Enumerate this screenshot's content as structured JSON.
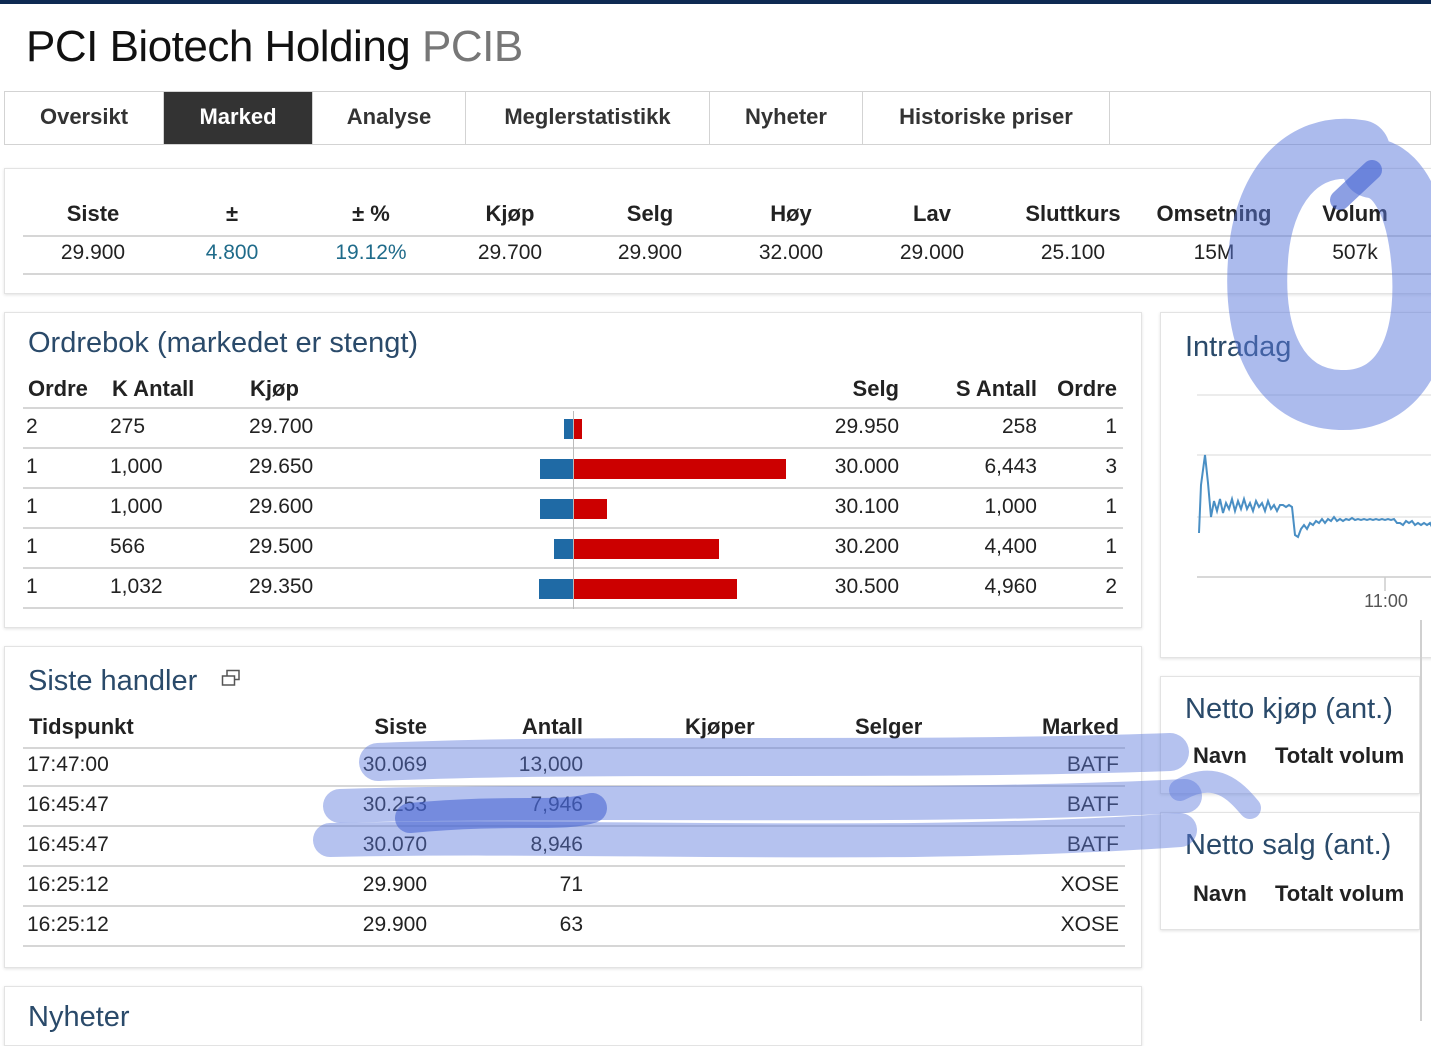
{
  "page": {
    "company": "PCI Biotech Holding",
    "ticker": "PCIB"
  },
  "tabs": [
    "Oversikt",
    "Marked",
    "Analyse",
    "Meglerstatistikk",
    "Nyheter",
    "Historiske priser"
  ],
  "active_tab": "Marked",
  "quote": {
    "headers": [
      "Siste",
      "±",
      "± %",
      "Kjøp",
      "Selg",
      "Høy",
      "Lav",
      "Sluttkurs",
      "Omsetning",
      "Volum"
    ],
    "values": [
      "29.900",
      "4.800",
      "19.12%",
      "29.700",
      "29.900",
      "32.000",
      "29.000",
      "25.100",
      "15M",
      "507k"
    ]
  },
  "orderbook": {
    "title": "Ordrebok (markedet er stengt)",
    "headers": {
      "buy_orders": "Ordre",
      "buy_qty": "K Antall",
      "buy_price": "Kjøp",
      "sell_price": "Selg",
      "sell_qty": "S Antall",
      "sell_orders": "Ordre"
    },
    "rows": [
      {
        "buy_orders": "2",
        "buy_qty": "275",
        "buy_price": "29.700",
        "sell_price": "29.950",
        "sell_qty": "258",
        "sell_orders": "1",
        "buy_qty_num": 275,
        "sell_qty_num": 258
      },
      {
        "buy_orders": "1",
        "buy_qty": "1,000",
        "buy_price": "29.650",
        "sell_price": "30.000",
        "sell_qty": "6,443",
        "sell_orders": "3",
        "buy_qty_num": 1000,
        "sell_qty_num": 6443
      },
      {
        "buy_orders": "1",
        "buy_qty": "1,000",
        "buy_price": "29.600",
        "sell_price": "30.100",
        "sell_qty": "1,000",
        "sell_orders": "1",
        "buy_qty_num": 1000,
        "sell_qty_num": 1000
      },
      {
        "buy_orders": "1",
        "buy_qty": "566",
        "buy_price": "29.500",
        "sell_price": "30.200",
        "sell_qty": "4,400",
        "sell_orders": "1",
        "buy_qty_num": 566,
        "sell_qty_num": 4400
      },
      {
        "buy_orders": "1",
        "buy_qty": "1,032",
        "buy_price": "29.350",
        "sell_price": "30.500",
        "sell_qty": "4,960",
        "sell_orders": "2",
        "buy_qty_num": 1032,
        "sell_qty_num": 4960
      }
    ]
  },
  "intraday": {
    "title": "Intradag",
    "time_label": "11:00"
  },
  "trades": {
    "title": "Siste handler",
    "popout_icon": "popout-icon",
    "headers": {
      "time": "Tidspunkt",
      "last": "Siste",
      "qty": "Antall",
      "buyer": "Kjøper",
      "seller": "Selger",
      "market": "Marked"
    },
    "rows": [
      {
        "time": "17:47:00",
        "last": "30.069",
        "qty": "13,000",
        "buyer": "",
        "seller": "",
        "market": "BATF"
      },
      {
        "time": "16:45:47",
        "last": "30.253",
        "qty": "7,946",
        "buyer": "",
        "seller": "",
        "market": "BATF"
      },
      {
        "time": "16:45:47",
        "last": "30.070",
        "qty": "8,946",
        "buyer": "",
        "seller": "",
        "market": "BATF"
      },
      {
        "time": "16:25:12",
        "last": "29.900",
        "qty": "71",
        "buyer": "",
        "seller": "",
        "market": "XOSE"
      },
      {
        "time": "16:25:12",
        "last": "29.900",
        "qty": "63",
        "buyer": "",
        "seller": "",
        "market": "XOSE"
      }
    ]
  },
  "net_buy": {
    "title": "Netto kjøp (ant.)",
    "col_name": "Navn",
    "col_volume": "Totalt volum"
  },
  "net_sell": {
    "title": "Netto salg (ant.)",
    "col_name": "Navn",
    "col_volume": "Totalt volum"
  },
  "news": {
    "title": "Nyheter"
  },
  "colors": {
    "buy_bar": "#1f6aa5",
    "sell_bar": "#cc0000",
    "positive": "#1f6b8a",
    "panel_title": "#2a4a6a",
    "active_tab_bg": "#333333",
    "annotation": "#5a78dc"
  }
}
